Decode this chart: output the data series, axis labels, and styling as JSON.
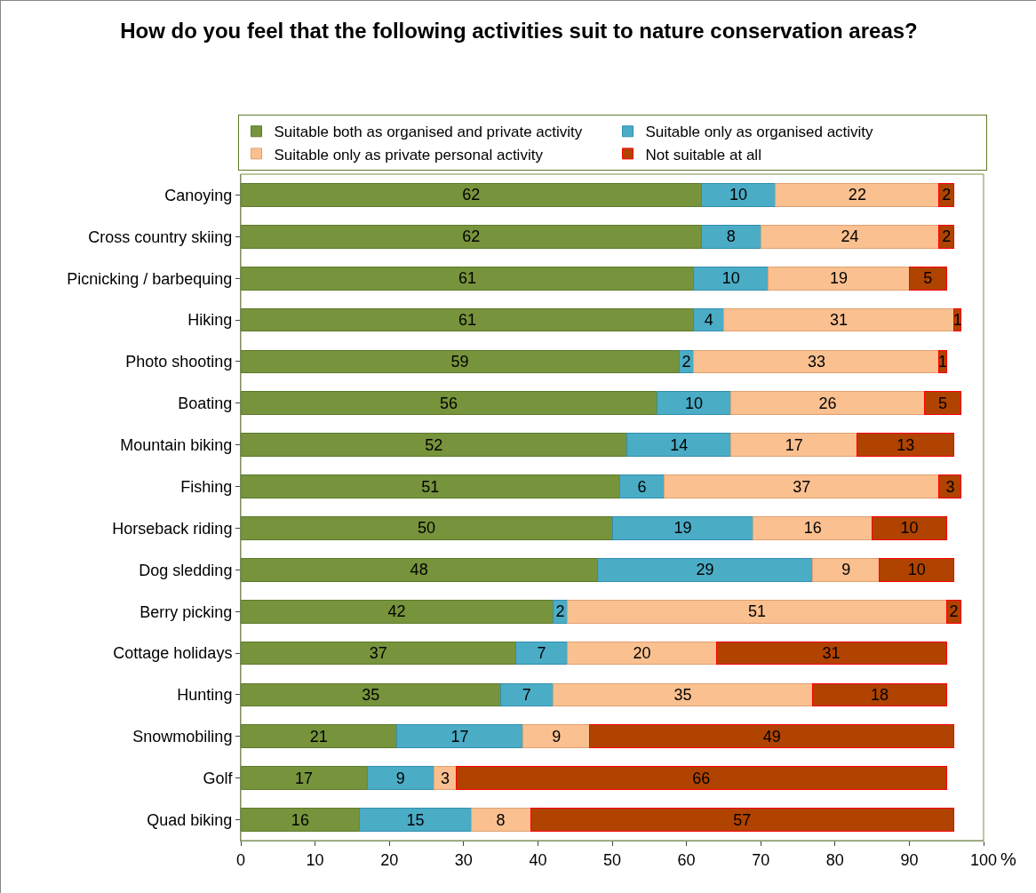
{
  "chart_data": {
    "type": "bar",
    "orientation": "horizontal",
    "stacked": true,
    "title": "How do you feel that the following activities suit to nature conservation areas?",
    "xlabel": "%",
    "categories": [
      "Canoying",
      "Cross country skiing",
      "Picnicking / barbequing",
      "Hiking",
      "Photo shooting",
      "Boating",
      "Mountain biking",
      "Fishing",
      "Horseback riding",
      "Dog sledding",
      "Berry picking",
      "Cottage holidays",
      "Hunting",
      "Snowmobiling",
      "Golf",
      "Quad biking"
    ],
    "series": [
      {
        "name": "Suitable both as organised and private activity",
        "color": "#77933c",
        "values": [
          62,
          62,
          61,
          61,
          59,
          56,
          52,
          51,
          50,
          48,
          42,
          37,
          35,
          21,
          17,
          16
        ]
      },
      {
        "name": "Suitable only as organised activity",
        "color": "#4bacc6",
        "values": [
          10,
          8,
          10,
          4,
          2,
          10,
          14,
          6,
          19,
          29,
          2,
          7,
          7,
          17,
          9,
          15
        ]
      },
      {
        "name": "Suitable only as private personal activity",
        "color": "#fac090",
        "values": [
          22,
          24,
          19,
          31,
          33,
          26,
          17,
          37,
          16,
          9,
          51,
          20,
          35,
          9,
          3,
          8
        ]
      },
      {
        "name": "Not suitable at all",
        "color": "#b04300",
        "values": [
          2,
          2,
          5,
          1,
          1,
          5,
          13,
          3,
          10,
          10,
          2,
          31,
          18,
          49,
          66,
          57
        ]
      }
    ],
    "xlim": [
      0,
      100
    ],
    "xticks": [
      0,
      10,
      20,
      30,
      40,
      50,
      60,
      70,
      80,
      90,
      100
    ],
    "data_labels": true,
    "legend": "top",
    "grid": false
  }
}
